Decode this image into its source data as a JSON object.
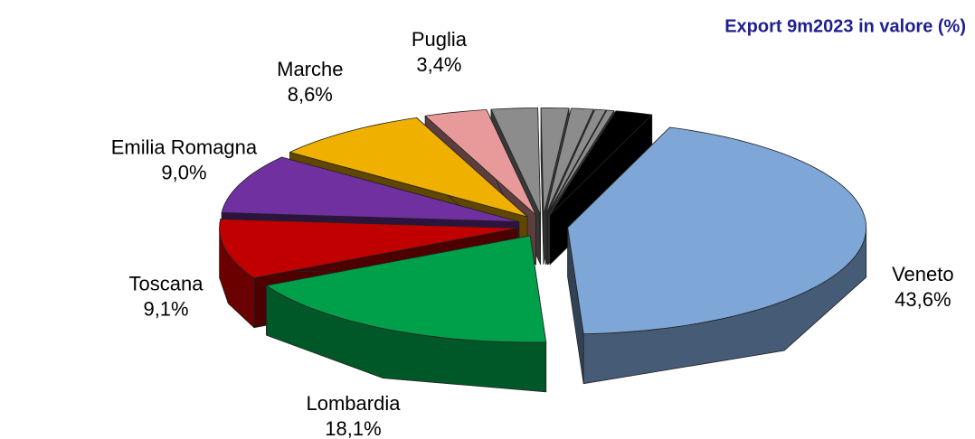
{
  "chart_data": {
    "type": "pie",
    "title": "Export 9m2023 in valore (%)",
    "categories": [
      "Veneto",
      "Lombardia",
      "Toscana",
      "Emilia Romagna",
      "Marche",
      "Puglia",
      null,
      null,
      null,
      null,
      null,
      null
    ],
    "values": [
      43.6,
      18.1,
      9.1,
      9.0,
      8.6,
      3.4,
      2.5,
      1.5,
      1.2,
      0.6,
      0.4,
      2.0
    ],
    "value_labels": [
      "43,6%",
      "18,1%",
      "9,1%",
      "9,0%",
      "8,6%",
      "3,4%",
      null,
      null,
      null,
      null,
      null,
      null
    ],
    "colors": [
      "#7ea6d6",
      "#00a04a",
      "#c00000",
      "#7030a0",
      "#f0b000",
      "#e89a9a",
      "#8c8c8c",
      "#8c8c8c",
      "#8c8c8c",
      "#8c8c8c",
      "#8c8c8c",
      "#000000"
    ]
  }
}
